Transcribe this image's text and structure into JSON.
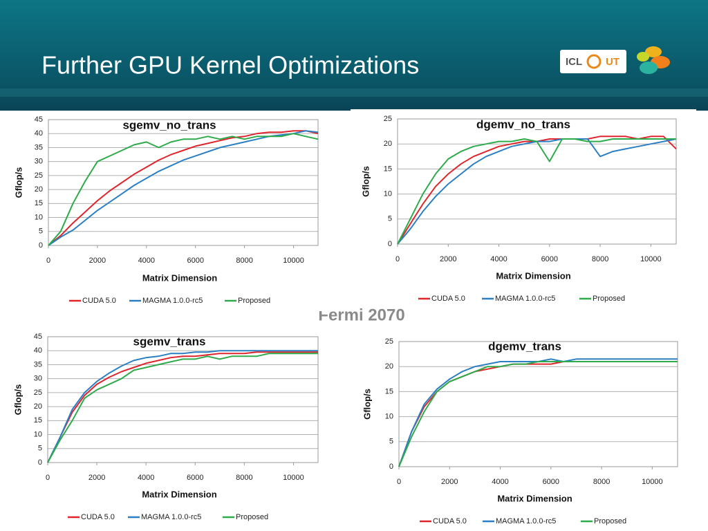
{
  "title": "Further GPU Kernel Optimizations",
  "subtitle": "Fermi 2070",
  "logo_text": [
    "ICL",
    "UT"
  ],
  "chart_data": [
    {
      "type": "line",
      "title": "sgemv_no_trans",
      "x_label": "Matrix Dimension",
      "y_label": "Gflop/s",
      "x": [
        0,
        500,
        1000,
        1500,
        2000,
        2500,
        3000,
        3500,
        4000,
        4500,
        5000,
        5500,
        6000,
        6500,
        7000,
        7500,
        8000,
        8500,
        9000,
        9500,
        10000,
        10500,
        11000
      ],
      "xlim": [
        0,
        11000
      ],
      "xticks": [
        0,
        2000,
        4000,
        6000,
        8000,
        10000
      ],
      "ylim": [
        0,
        45
      ],
      "yticks": [
        0,
        5,
        10,
        15,
        20,
        25,
        30,
        35,
        40,
        45
      ],
      "grid": true,
      "legend": "bottom",
      "series": [
        {
          "name": "CUDA 5.0",
          "color": "#e0242b",
          "values": [
            0,
            3.5,
            8,
            12,
            16,
            19.5,
            22.5,
            25.5,
            28,
            30.5,
            32.5,
            34,
            35.5,
            36.5,
            37.5,
            38.5,
            39,
            40,
            40.5,
            40.5,
            41,
            41,
            40
          ]
        },
        {
          "name": "MAGMA 1.0.0-rc5",
          "color": "#2a7fc4",
          "values": [
            0,
            3,
            5.5,
            9,
            12.5,
            15.5,
            18.5,
            21.5,
            24,
            26.5,
            28.5,
            30.5,
            32,
            33.5,
            35,
            36,
            37,
            38,
            39,
            39.5,
            40,
            41,
            40.5
          ]
        },
        {
          "name": "Proposed",
          "color": "#2daa4a",
          "values": [
            0,
            5,
            15,
            23,
            30,
            32,
            34,
            36,
            37,
            35,
            37,
            38,
            38,
            39,
            38,
            39,
            38,
            39,
            39,
            39,
            40,
            39,
            38
          ]
        }
      ]
    },
    {
      "type": "line",
      "title": "dgemv_no_trans",
      "x_label": "Matrix Dimension",
      "y_label": "Gflop/s",
      "x": [
        0,
        500,
        1000,
        1500,
        2000,
        2500,
        3000,
        3500,
        4000,
        4500,
        5000,
        5500,
        6000,
        6500,
        7000,
        7500,
        8000,
        8500,
        9000,
        9500,
        10000,
        10500,
        11000
      ],
      "xlim": [
        0,
        11000
      ],
      "xticks": [
        0,
        2000,
        4000,
        6000,
        8000,
        10000
      ],
      "ylim": [
        0,
        25
      ],
      "yticks": [
        0,
        5,
        10,
        15,
        20,
        25
      ],
      "grid": true,
      "legend": "bottom",
      "series": [
        {
          "name": "CUDA 5.0",
          "color": "#e0242b",
          "values": [
            0,
            4,
            8,
            11.5,
            14,
            16,
            17.5,
            18.5,
            19.5,
            20,
            20.5,
            20.5,
            21,
            21,
            21,
            21,
            21.5,
            21.5,
            21.5,
            21,
            21.5,
            21.5,
            19
          ]
        },
        {
          "name": "MAGMA 1.0.0-rc5",
          "color": "#2a7fc4",
          "values": [
            0,
            3,
            6.5,
            9.5,
            12,
            14,
            16,
            17.5,
            18.5,
            19.5,
            20,
            20.5,
            20.5,
            21,
            21,
            21,
            17.5,
            18.5,
            19,
            19.5,
            20,
            20.5,
            21
          ]
        },
        {
          "name": "Proposed",
          "color": "#2daa4a",
          "values": [
            0,
            5,
            10,
            14,
            17,
            18.5,
            19.5,
            20,
            20.5,
            20.5,
            21,
            20.5,
            16.5,
            21,
            21,
            20.5,
            20.5,
            21,
            21,
            21,
            21,
            21,
            21
          ]
        }
      ]
    },
    {
      "type": "line",
      "title": "sgemv_trans",
      "x_label": "Matrix Dimension",
      "y_label": "Gflop/s",
      "x": [
        0,
        500,
        1000,
        1500,
        2000,
        2500,
        3000,
        3500,
        4000,
        4500,
        5000,
        5500,
        6000,
        6500,
        7000,
        7500,
        8000,
        8500,
        9000,
        9500,
        10000,
        10500,
        11000
      ],
      "xlim": [
        0,
        11000
      ],
      "xticks": [
        0,
        2000,
        4000,
        6000,
        8000,
        10000
      ],
      "ylim": [
        0,
        45
      ],
      "yticks": [
        0,
        5,
        10,
        15,
        20,
        25,
        30,
        35,
        40,
        45
      ],
      "grid": true,
      "legend": "bottom",
      "series": [
        {
          "name": "CUDA 5.0",
          "color": "#e0242b",
          "values": [
            0,
            9,
            18,
            24,
            28,
            30.5,
            32.5,
            34,
            35.5,
            36.5,
            37.5,
            38,
            38,
            38.5,
            39,
            39,
            39,
            39.5,
            39.5,
            39.5,
            39.5,
            39.5,
            39.5
          ]
        },
        {
          "name": "MAGMA 1.0.0-rc5",
          "color": "#2a7fc4",
          "values": [
            0,
            9,
            19,
            25,
            29,
            32,
            34.5,
            36.5,
            37.5,
            38,
            39,
            39,
            39.5,
            39.5,
            40,
            40,
            40,
            40,
            40,
            40,
            40,
            40,
            40
          ]
        },
        {
          "name": "Proposed",
          "color": "#2daa4a",
          "values": [
            0,
            8,
            15,
            23,
            26,
            28,
            30,
            33,
            34,
            35,
            36,
            37,
            37,
            38,
            37,
            38,
            38,
            38,
            39,
            39,
            39,
            39,
            39
          ]
        }
      ]
    },
    {
      "type": "line",
      "title": "dgemv_trans",
      "x_label": "Matrix Dimension",
      "y_label": "Gflop/s",
      "x": [
        0,
        500,
        1000,
        1500,
        2000,
        2500,
        3000,
        3500,
        4000,
        4500,
        5000,
        5500,
        6000,
        6500,
        7000,
        7500,
        8000,
        8500,
        9000,
        9500,
        10000,
        10500,
        11000
      ],
      "xlim": [
        0,
        11000
      ],
      "xticks": [
        0,
        2000,
        4000,
        6000,
        8000,
        10000
      ],
      "ylim": [
        0,
        25
      ],
      "yticks": [
        0,
        5,
        10,
        15,
        20,
        25
      ],
      "grid": true,
      "legend": "bottom",
      "series": [
        {
          "name": "CUDA 5.0",
          "color": "#e0242b",
          "values": [
            0,
            7,
            12,
            15,
            17,
            18,
            19,
            19.5,
            20,
            20.5,
            20.5,
            20.5,
            20.5,
            21,
            21,
            21,
            21,
            21,
            21,
            21,
            21,
            21,
            21
          ]
        },
        {
          "name": "MAGMA 1.0.0-rc5",
          "color": "#2a7fc4",
          "values": [
            0,
            7,
            12.5,
            15.5,
            17.5,
            19,
            20,
            20.5,
            21,
            21,
            21,
            21,
            21.5,
            21,
            21.5,
            21.5,
            21.5,
            21.5,
            21.5,
            21.5,
            21.5,
            21.5,
            21.5
          ]
        },
        {
          "name": "Proposed",
          "color": "#2daa4a",
          "values": [
            0,
            6,
            11,
            15,
            17,
            18,
            19,
            20,
            20,
            20.5,
            20.5,
            21,
            21,
            21,
            21,
            21,
            21,
            21,
            21,
            21,
            21,
            21,
            21
          ]
        }
      ]
    }
  ]
}
